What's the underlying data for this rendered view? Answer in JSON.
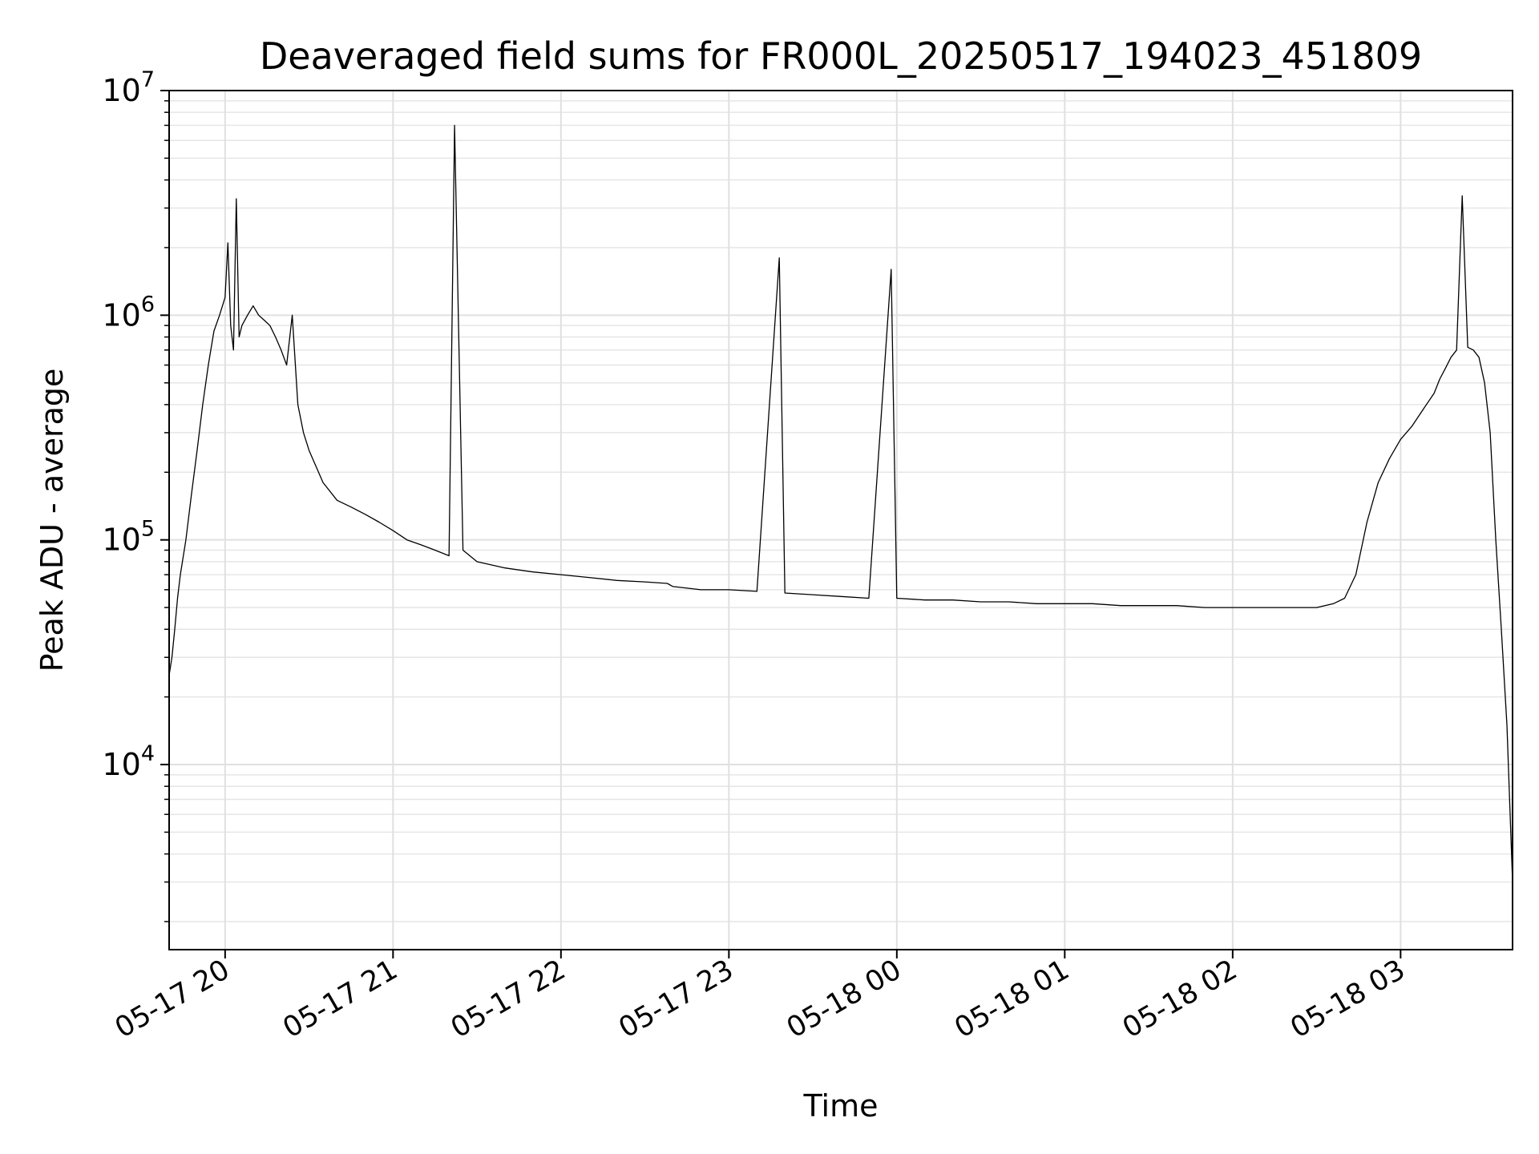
{
  "chart_data": {
    "type": "line",
    "title": "Deaveraged field sums for FR000L_20250517_194023_451809",
    "xlabel": "Time",
    "ylabel": "Peak ADU - average",
    "yscale": "log",
    "ylim": [
      1500,
      10000000
    ],
    "xlim": [
      "05-17 19:40",
      "05-18 03:40"
    ],
    "grid": true,
    "line_color": "#000000",
    "y_ticks": [
      {
        "value": 10000,
        "base": "10",
        "exp": "4"
      },
      {
        "value": 100000,
        "base": "10",
        "exp": "5"
      },
      {
        "value": 1000000,
        "base": "10",
        "exp": "6"
      },
      {
        "value": 10000000,
        "base": "10",
        "exp": "7"
      }
    ],
    "x_ticks": [
      {
        "value": "05-17 20:00",
        "label": "05-17 20"
      },
      {
        "value": "05-17 21:00",
        "label": "05-17 21"
      },
      {
        "value": "05-17 22:00",
        "label": "05-17 22"
      },
      {
        "value": "05-17 23:00",
        "label": "05-17 23"
      },
      {
        "value": "05-18 00:00",
        "label": "05-18 00"
      },
      {
        "value": "05-18 01:00",
        "label": "05-18 01"
      },
      {
        "value": "05-18 02:00",
        "label": "05-18 02"
      },
      {
        "value": "05-18 03:00",
        "label": "05-18 03"
      }
    ],
    "series": [
      {
        "x": [
          "05-17 19:40",
          "05-17 19:41",
          "05-17 19:42",
          "05-17 19:43",
          "05-17 19:44",
          "05-17 19:46",
          "05-17 19:48",
          "05-17 19:50",
          "05-17 19:52",
          "05-17 19:54",
          "05-17 19:56",
          "05-17 19:58",
          "05-17 20:00",
          "05-17 20:01",
          "05-17 20:02",
          "05-17 20:03",
          "05-17 20:04",
          "05-17 20:05",
          "05-17 20:06",
          "05-17 20:08",
          "05-17 20:10",
          "05-17 20:12",
          "05-17 20:14",
          "05-17 20:16",
          "05-17 20:18",
          "05-17 20:20",
          "05-17 20:22",
          "05-17 20:24",
          "05-17 20:26",
          "05-17 20:28",
          "05-17 20:30",
          "05-17 20:35",
          "05-17 20:40",
          "05-17 20:45",
          "05-17 20:50",
          "05-17 20:55",
          "05-17 21:00",
          "05-17 21:05",
          "05-17 21:10",
          "05-17 21:15",
          "05-17 21:20",
          "05-17 21:22",
          "05-17 21:25",
          "05-17 21:30",
          "05-17 21:40",
          "05-17 21:50",
          "05-17 22:00",
          "05-17 22:10",
          "05-17 22:20",
          "05-17 22:30",
          "05-17 22:38",
          "05-17 22:40",
          "05-17 22:50",
          "05-17 23:00",
          "05-17 23:10",
          "05-17 23:18",
          "05-17 23:20",
          "05-17 23:30",
          "05-17 23:40",
          "05-17 23:50",
          "05-17 23:58",
          "05-18 00:00",
          "05-18 00:10",
          "05-18 00:20",
          "05-18 00:30",
          "05-18 00:40",
          "05-18 00:50",
          "05-18 01:00",
          "05-18 01:10",
          "05-18 01:20",
          "05-18 01:30",
          "05-18 01:40",
          "05-18 01:50",
          "05-18 02:00",
          "05-18 02:10",
          "05-18 02:20",
          "05-18 02:30",
          "05-18 02:36",
          "05-18 02:40",
          "05-18 02:44",
          "05-18 02:48",
          "05-18 02:52",
          "05-18 02:56",
          "05-18 03:00",
          "05-18 03:04",
          "05-18 03:08",
          "05-18 03:12",
          "05-18 03:14",
          "05-18 03:16",
          "05-18 03:18",
          "05-18 03:20",
          "05-18 03:22",
          "05-18 03:24",
          "05-18 03:26",
          "05-18 03:28",
          "05-18 03:30",
          "05-18 03:32",
          "05-18 03:34",
          "05-18 03:36",
          "05-18 03:38",
          "05-18 03:40"
        ],
        "y": [
          25000,
          30000,
          40000,
          55000,
          70000,
          100000,
          160000,
          250000,
          400000,
          600000,
          850000,
          1000000,
          1200000,
          2100000,
          900000,
          700000,
          3300000,
          800000,
          900000,
          1000000,
          1100000,
          1000000,
          950000,
          900000,
          800000,
          700000,
          600000,
          1000000,
          400000,
          300000,
          250000,
          180000,
          150000,
          140000,
          130000,
          120000,
          110000,
          100000,
          95000,
          90000,
          85000,
          7000000,
          90000,
          80000,
          75000,
          72000,
          70000,
          68000,
          66000,
          65000,
          64000,
          62000,
          60000,
          60000,
          59000,
          1800000,
          58000,
          57000,
          56000,
          55000,
          1600000,
          55000,
          54000,
          54000,
          53000,
          53000,
          52000,
          52000,
          52000,
          51000,
          51000,
          51000,
          50000,
          50000,
          50000,
          50000,
          50000,
          52000,
          55000,
          70000,
          120000,
          180000,
          230000,
          280000,
          320000,
          380000,
          450000,
          520000,
          580000,
          650000,
          700000,
          3400000,
          720000,
          700000,
          650000,
          500000,
          300000,
          100000,
          40000,
          15000,
          3000
        ]
      }
    ]
  }
}
